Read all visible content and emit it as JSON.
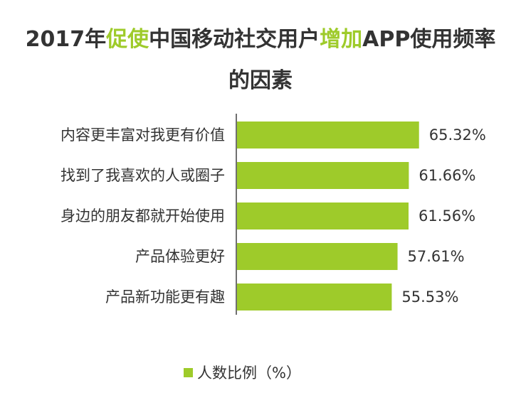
{
  "title": {
    "line1_part1": "2017年",
    "line1_hl1": "促使",
    "line1_part2": "中国移动社交用户",
    "line1_hl2": "增加",
    "line1_part3": "APP使用频率",
    "line2": "的因素"
  },
  "colors": {
    "bar": "#9ecb2a",
    "highlight": "#9ecb2a",
    "text": "#333333",
    "axis": "#404040"
  },
  "chart_data": {
    "type": "bar",
    "orientation": "horizontal",
    "categories": [
      "内容更丰富对我更有价值",
      "找到了我喜欢的人或圈子",
      "身边的朋友都就开始使用",
      "产品体验更好",
      "产品新功能更有趣"
    ],
    "value_labels": [
      "65.32%",
      "61.66%",
      "61.56%",
      "57.61%",
      "55.53%"
    ],
    "series": [
      {
        "name": "人数比例（%）",
        "values": [
          65.32,
          61.66,
          61.56,
          57.61,
          55.53
        ]
      }
    ],
    "legend": "bottom-center",
    "grid": false
  },
  "legend": {
    "label": "人数比例（%）"
  }
}
